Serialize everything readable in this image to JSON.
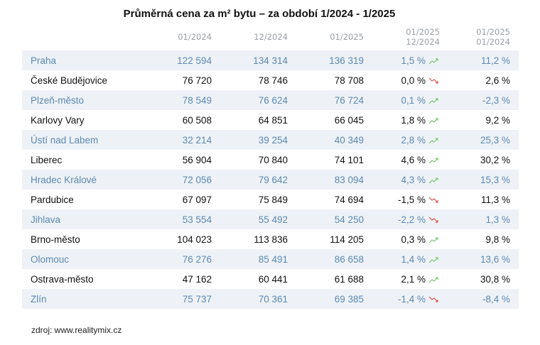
{
  "title": "Průměrná cena za m² bytu – za období 1/2024  -  1/2025",
  "headers": {
    "c1": "01/2024",
    "c2": "12/2024",
    "c3": "01/2025",
    "c4a": "01/2025",
    "c4b": "12/2024",
    "c5a": "01/2025",
    "c5b": "01/2024"
  },
  "colors": {
    "up": "#7cc576",
    "down": "#d9534f",
    "accent_text": "#5b88b1",
    "stripe": "#eef2f7"
  },
  "rows": [
    {
      "city": "Praha",
      "v2401": "122 594",
      "v2412": "134 314",
      "v2501": "136 319",
      "mom": "1,5 %",
      "trend": "up",
      "yoy": "11,2 %"
    },
    {
      "city": "České Budějovice",
      "v2401": "76 720",
      "v2412": "78 746",
      "v2501": "78 708",
      "mom": "0,0 %",
      "trend": "down",
      "yoy": "2,6 %"
    },
    {
      "city": "Plzeň-město",
      "v2401": "78 549",
      "v2412": "76 624",
      "v2501": "76 724",
      "mom": "0,1 %",
      "trend": "up",
      "yoy": "-2,3 %"
    },
    {
      "city": "Karlovy Vary",
      "v2401": "60 508",
      "v2412": "64 851",
      "v2501": "66 045",
      "mom": "1,8 %",
      "trend": "up",
      "yoy": "9,2 %"
    },
    {
      "city": "Ústí nad Labem",
      "v2401": "32 214",
      "v2412": "39 254",
      "v2501": "40 349",
      "mom": "2,8 %",
      "trend": "up",
      "yoy": "25,3 %"
    },
    {
      "city": "Liberec",
      "v2401": "56 904",
      "v2412": "70 840",
      "v2501": "74 101",
      "mom": "4,6 %",
      "trend": "up",
      "yoy": "30,2 %"
    },
    {
      "city": "Hradec Králové",
      "v2401": "72 056",
      "v2412": "79 642",
      "v2501": "83 094",
      "mom": "4,3 %",
      "trend": "up",
      "yoy": "15,3 %"
    },
    {
      "city": "Pardubice",
      "v2401": "67 097",
      "v2412": "75 849",
      "v2501": "74 694",
      "mom": "-1,5 %",
      "trend": "down",
      "yoy": "11,3 %"
    },
    {
      "city": "Jihlava",
      "v2401": "53 554",
      "v2412": "55 492",
      "v2501": "54 250",
      "mom": "-2,2 %",
      "trend": "down",
      "yoy": "1,3 %"
    },
    {
      "city": "Brno-město",
      "v2401": "104 023",
      "v2412": "113 836",
      "v2501": "114 205",
      "mom": "0,3 %",
      "trend": "up",
      "yoy": "9,8 %"
    },
    {
      "city": "Olomouc",
      "v2401": "76 276",
      "v2412": "85 491",
      "v2501": "86 658",
      "mom": "1,4 %",
      "trend": "up",
      "yoy": "13,6 %"
    },
    {
      "city": "Ostrava-město",
      "v2401": "47 162",
      "v2412": "60 441",
      "v2501": "61 688",
      "mom": "2,1 %",
      "trend": "up",
      "yoy": "30,8 %"
    },
    {
      "city": "Zlín",
      "v2401": "75 737",
      "v2412": "70 361",
      "v2501": "69 385",
      "mom": "-1,4 %",
      "trend": "down",
      "yoy": "-8,4 %"
    }
  ],
  "source": "zdroj: www.realitymix.cz"
}
